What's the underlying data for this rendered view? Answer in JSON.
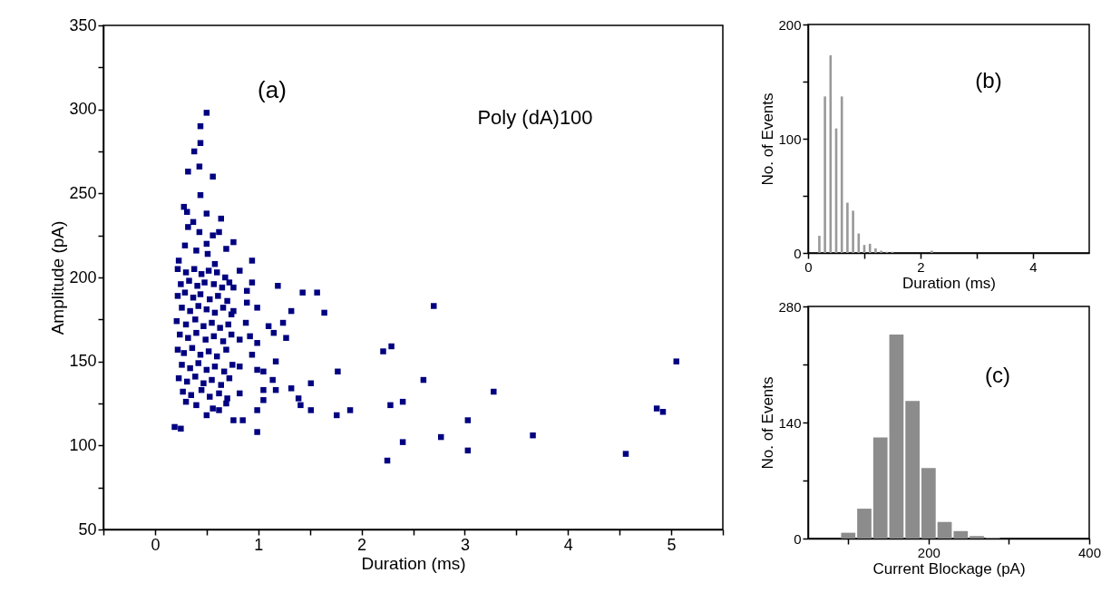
{
  "chart_data": [
    {
      "type": "scatter",
      "xlabel": "Duration (ms)",
      "ylabel": "Amplitude (pA)",
      "annotations": [
        "(a)",
        "Poly (dA)100"
      ],
      "marker": "square",
      "grid": false,
      "xlim": [
        -0.5,
        5.5
      ],
      "xticks": [
        {
          "value": -0.5,
          "label": null
        },
        0,
        {
          "value": 0.5,
          "label": null
        },
        1,
        {
          "value": 1.5,
          "label": null
        },
        2,
        {
          "value": 2.5,
          "label": null
        },
        3,
        {
          "value": 3.5,
          "label": null
        },
        4,
        {
          "value": 4.5,
          "label": null
        },
        5,
        {
          "value": 5.5,
          "label": null
        }
      ],
      "ylim": [
        50,
        350
      ],
      "yticks": [
        50,
        {
          "value": 75,
          "label": null
        },
        100,
        {
          "value": 125,
          "label": null
        },
        150,
        {
          "value": 175,
          "label": null
        },
        200,
        {
          "value": 225,
          "label": null
        },
        250,
        {
          "value": 275,
          "label": null
        },
        300,
        {
          "value": 325,
          "label": null
        },
        350
      ],
      "series": [
        {
          "color": "#000080",
          "x": [
            0.5,
            0.44,
            0.44,
            0.38,
            0.32,
            0.43,
            0.56,
            0.44,
            0.28,
            0.31,
            0.5,
            0.64,
            0.37,
            0.32,
            0.43,
            0.62,
            0.56,
            0.76,
            0.5,
            0.29,
            0.69,
            0.4,
            0.51,
            0.23,
            0.94,
            0.58,
            0.82,
            0.76,
            0.94,
            1.19,
            1.43,
            1.57,
            0.89,
            0.89,
            0.99,
            1.32,
            1.64,
            0.76,
            0.88,
            1.1,
            1.24,
            1.15,
            0.92,
            1.27,
            0.82,
            0.99,
            0.94,
            1.17,
            0.82,
            0.99,
            1.05,
            1.77,
            1.14,
            1.51,
            1.17,
            1.32,
            1.05,
            1.39,
            1.41,
            1.51,
            1.76,
            1.89,
            1.05,
            0.99,
            0.5,
            0.76,
            0.85,
            0.99,
            0.19,
            0.25,
            0.62,
            0.69,
            0.82,
            2.7,
            2.21,
            2.29,
            2.6,
            2.28,
            2.4,
            3.28,
            3.03,
            2.4,
            2.77,
            3.66,
            3.03,
            2.25,
            4.56,
            4.86,
            4.92,
            5.05,
            0.22,
            0.3,
            0.38,
            0.45,
            0.52,
            0.6,
            0.68,
            0.25,
            0.33,
            0.41,
            0.48,
            0.57,
            0.65,
            0.72,
            0.22,
            0.29,
            0.37,
            0.44,
            0.53,
            0.61,
            0.7,
            0.26,
            0.34,
            0.42,
            0.5,
            0.58,
            0.66,
            0.74,
            0.21,
            0.3,
            0.39,
            0.47,
            0.55,
            0.63,
            0.71,
            0.24,
            0.32,
            0.4,
            0.49,
            0.57,
            0.66,
            0.74,
            0.22,
            0.28,
            0.36,
            0.44,
            0.52,
            0.6,
            0.69,
            0.26,
            0.34,
            0.42,
            0.5,
            0.58,
            0.67,
            0.75,
            0.23,
            0.31,
            0.39,
            0.47,
            0.55,
            0.64,
            0.72,
            0.27,
            0.35,
            0.45,
            0.53,
            0.62,
            0.7,
            0.4,
            0.56,
            0.3
          ],
          "values": [
            298,
            290,
            280,
            275,
            263,
            266,
            260,
            249,
            242,
            239,
            238,
            235,
            233,
            230,
            227,
            227,
            225,
            221,
            220,
            219,
            217,
            216,
            214,
            210,
            210,
            208,
            204,
            194,
            197,
            195,
            191,
            191,
            192,
            185,
            182,
            180,
            179,
            180,
            173,
            171,
            173,
            167,
            165,
            164,
            163,
            161,
            154,
            150,
            147,
            145,
            144,
            144,
            139,
            137,
            133,
            134,
            133,
            128,
            124,
            121,
            118,
            121,
            127,
            121,
            118,
            115,
            115,
            108,
            111,
            110,
            121,
            125,
            131,
            183,
            156,
            159,
            139,
            124,
            126,
            132,
            115,
            102,
            105,
            106,
            97,
            91,
            95,
            122,
            120,
            150,
            205,
            203,
            205,
            202,
            204,
            203,
            200,
            196,
            198,
            195,
            197,
            196,
            194,
            197,
            189,
            191,
            188,
            190,
            187,
            189,
            186,
            182,
            180,
            183,
            181,
            179,
            182,
            178,
            174,
            172,
            175,
            171,
            173,
            170,
            172,
            166,
            164,
            167,
            163,
            165,
            162,
            166,
            157,
            155,
            158,
            154,
            156,
            153,
            157,
            148,
            146,
            149,
            145,
            147,
            144,
            148,
            140,
            138,
            141,
            137,
            139,
            136,
            140,
            132,
            130,
            133,
            129,
            131,
            128,
            124,
            122,
            126
          ]
        }
      ]
    },
    {
      "type": "histogram",
      "xlabel": "Duration (ms)",
      "ylabel": "No. of Events",
      "annotations": [
        "(b)"
      ],
      "grid": false,
      "color": "#999999",
      "bins": [
        0.15,
        0.25,
        0.35,
        0.45,
        0.55,
        0.65,
        0.75,
        0.85,
        0.95,
        1.05,
        1.15,
        1.25,
        1.35,
        1.45,
        1.55,
        1.65,
        1.75,
        1.85,
        1.95,
        2.05,
        2.15,
        2.25
      ],
      "values": [
        15,
        137,
        173,
        109,
        137,
        44,
        37,
        17,
        7,
        8,
        4,
        2,
        1,
        1,
        0,
        0,
        0,
        0,
        0,
        0,
        2
      ],
      "xlim": [
        0,
        5
      ],
      "xticks": [
        0,
        {
          "value": 1,
          "label": null
        },
        2,
        {
          "value": 3,
          "label": null
        },
        4
      ],
      "ylim": [
        0,
        200
      ],
      "yticks": [
        0,
        {
          "value": 50,
          "label": null
        },
        100,
        {
          "value": 150,
          "label": null
        },
        200
      ]
    },
    {
      "type": "histogram",
      "xlabel": "Current Blockage (pA)",
      "ylabel": "No. of Events",
      "annotations": [
        "(c)"
      ],
      "grid": false,
      "color": "#8c8c8c",
      "bins": [
        90,
        110,
        130,
        150,
        170,
        190,
        210,
        230,
        250,
        270,
        290
      ],
      "values": [
        7,
        36,
        122,
        246,
        166,
        85,
        20,
        9,
        3,
        1
      ],
      "xlim": [
        50,
        400
      ],
      "xticks": [
        {
          "value": 100,
          "label": null
        },
        200,
        {
          "value": 300,
          "label": null
        },
        400
      ],
      "ylim": [
        0,
        280
      ],
      "yticks": [
        0,
        {
          "value": 70,
          "label": null
        },
        140,
        {
          "value": 210,
          "label": null
        },
        280
      ]
    }
  ]
}
